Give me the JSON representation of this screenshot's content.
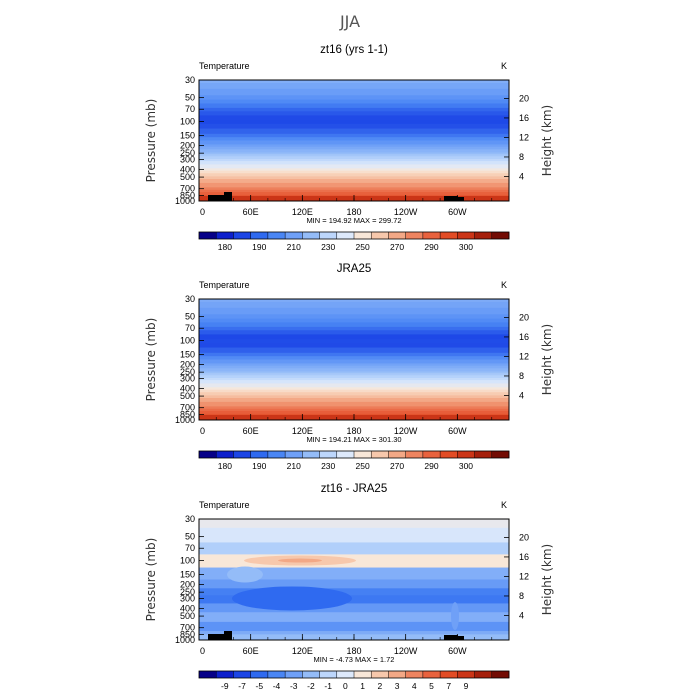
{
  "figure": {
    "title": "JJA"
  },
  "chart_data": [
    {
      "type": "heatmap",
      "title": "zt16 (yrs 1-1)",
      "subtitle_left": "Temperature",
      "units": "K",
      "ylabel": "Pressure (mb)",
      "ylabel_right": "Height (km)",
      "x_ticks": [
        "0",
        "60E",
        "120E",
        "180",
        "120W",
        "60W"
      ],
      "y_ticks": [
        "30",
        "50",
        "70",
        "100",
        "150",
        "200",
        "250",
        "300",
        "400",
        "500",
        "700",
        "850",
        "1000"
      ],
      "height_ticks": [
        "4",
        "8",
        "12",
        "16",
        "20"
      ],
      "stats": {
        "min_label": "MIN =",
        "min": "194.92",
        "max_label": "MAX =",
        "max": "299.72"
      },
      "colorbar": {
        "colors": [
          "#060088",
          "#0d1fcc",
          "#1c45e6",
          "#2f6af0",
          "#4a86f4",
          "#6fa0f7",
          "#94bcf8",
          "#bcd6fb",
          "#dde9fb",
          "#f8e7d8",
          "#f7c8ac",
          "#f3a886",
          "#ee8460",
          "#e8623e",
          "#e24c25",
          "#cb3517",
          "#a51f0b",
          "#730c04"
        ],
        "labels": [
          "180",
          "190",
          "210",
          "230",
          "250",
          "270",
          "290",
          "300"
        ],
        "label_after_boxes": [
          1,
          3,
          5,
          7,
          9,
          11,
          13,
          15
        ]
      },
      "levels": [
        {
          "p": 30,
          "temp": 221
        },
        {
          "p": 50,
          "temp": 212
        },
        {
          "p": 70,
          "temp": 204
        },
        {
          "p": 100,
          "temp": 199
        },
        {
          "p": 150,
          "temp": 206
        },
        {
          "p": 200,
          "temp": 216
        },
        {
          "p": 250,
          "temp": 226
        },
        {
          "p": 300,
          "temp": 237
        },
        {
          "p": 400,
          "temp": 250
        },
        {
          "p": 500,
          "temp": 262
        },
        {
          "p": 700,
          "temp": 277
        },
        {
          "p": 850,
          "temp": 288
        },
        {
          "p": 1000,
          "temp": 296
        }
      ]
    },
    {
      "type": "heatmap",
      "title": "JRA25",
      "subtitle_left": "Temperature",
      "units": "K",
      "ylabel": "Pressure (mb)",
      "ylabel_right": "Height (km)",
      "x_ticks": [
        "0",
        "60E",
        "120E",
        "180",
        "120W",
        "60W"
      ],
      "y_ticks": [
        "30",
        "50",
        "70",
        "100",
        "150",
        "200",
        "250",
        "300",
        "400",
        "500",
        "700",
        "850",
        "1000"
      ],
      "height_ticks": [
        "4",
        "8",
        "12",
        "16",
        "20"
      ],
      "stats": {
        "min_label": "MIN =",
        "min": "194.21",
        "max_label": "MAX =",
        "max": "301.30"
      },
      "colorbar": {
        "colors": [
          "#060088",
          "#0d1fcc",
          "#1c45e6",
          "#2f6af0",
          "#4a86f4",
          "#6fa0f7",
          "#94bcf8",
          "#bcd6fb",
          "#dde9fb",
          "#f8e7d8",
          "#f7c8ac",
          "#f3a886",
          "#ee8460",
          "#e8623e",
          "#e24c25",
          "#cb3517",
          "#a51f0b",
          "#730c04"
        ],
        "labels": [
          "180",
          "190",
          "210",
          "230",
          "250",
          "270",
          "290",
          "300"
        ],
        "label_after_boxes": [
          1,
          3,
          5,
          7,
          9,
          11,
          13,
          15
        ]
      },
      "levels": [
        {
          "p": 30,
          "temp": 220
        },
        {
          "p": 50,
          "temp": 212
        },
        {
          "p": 70,
          "temp": 205
        },
        {
          "p": 100,
          "temp": 198
        },
        {
          "p": 150,
          "temp": 206
        },
        {
          "p": 200,
          "temp": 217
        },
        {
          "p": 250,
          "temp": 227
        },
        {
          "p": 300,
          "temp": 238
        },
        {
          "p": 400,
          "temp": 251
        },
        {
          "p": 500,
          "temp": 263
        },
        {
          "p": 700,
          "temp": 278
        },
        {
          "p": 850,
          "temp": 289
        },
        {
          "p": 1000,
          "temp": 297
        }
      ]
    },
    {
      "type": "heatmap",
      "title": "zt16 - JRA25",
      "subtitle_left": "Temperature",
      "units": "K",
      "ylabel": "Pressure (mb)",
      "ylabel_right": "Height (km)",
      "x_ticks": [
        "0",
        "60E",
        "120E",
        "180",
        "120W",
        "60W"
      ],
      "y_ticks": [
        "30",
        "50",
        "70",
        "100",
        "150",
        "200",
        "250",
        "300",
        "400",
        "500",
        "700",
        "850",
        "1000"
      ],
      "height_ticks": [
        "4",
        "8",
        "12",
        "16",
        "20"
      ],
      "stats": {
        "min_label": "MIN =",
        "min": "-4.73",
        "max_label": "MAX =",
        "max": "1.72"
      },
      "colorbar": {
        "colors": [
          "#060088",
          "#0d1fcc",
          "#1c45e6",
          "#2f6af0",
          "#4a86f4",
          "#6fa0f7",
          "#94bcf8",
          "#bcd6fb",
          "#dde9fb",
          "#f8e7d8",
          "#f7c8ac",
          "#f3a886",
          "#ee8460",
          "#e8623e",
          "#e24c25",
          "#cb3517",
          "#a51f0b",
          "#730c04"
        ],
        "labels": [
          "-9",
          "-7",
          "-5",
          "-4",
          "-3",
          "-2",
          "-1",
          "0",
          "1",
          "2",
          "3",
          "4",
          "5",
          "7",
          "9"
        ],
        "label_after_boxes": [
          1,
          2,
          3,
          4,
          5,
          6,
          7,
          8,
          9,
          10,
          11,
          12,
          13,
          14,
          15
        ]
      },
      "levels": [
        {
          "p": 30,
          "diff": 0.5
        },
        {
          "p": 50,
          "diff": 0.2
        },
        {
          "p": 70,
          "diff": -0.5
        },
        {
          "p": 100,
          "diff": 0.8
        },
        {
          "p": 150,
          "diff": -1.5
        },
        {
          "p": 200,
          "diff": -2.2
        },
        {
          "p": 250,
          "diff": -3.2
        },
        {
          "p": 300,
          "diff": -3.5
        },
        {
          "p": 400,
          "diff": -2.3
        },
        {
          "p": 500,
          "diff": -1.5
        },
        {
          "p": 700,
          "diff": -2.5
        },
        {
          "p": 850,
          "diff": -1.6
        },
        {
          "p": 1000,
          "diff": -1.2
        }
      ]
    }
  ]
}
